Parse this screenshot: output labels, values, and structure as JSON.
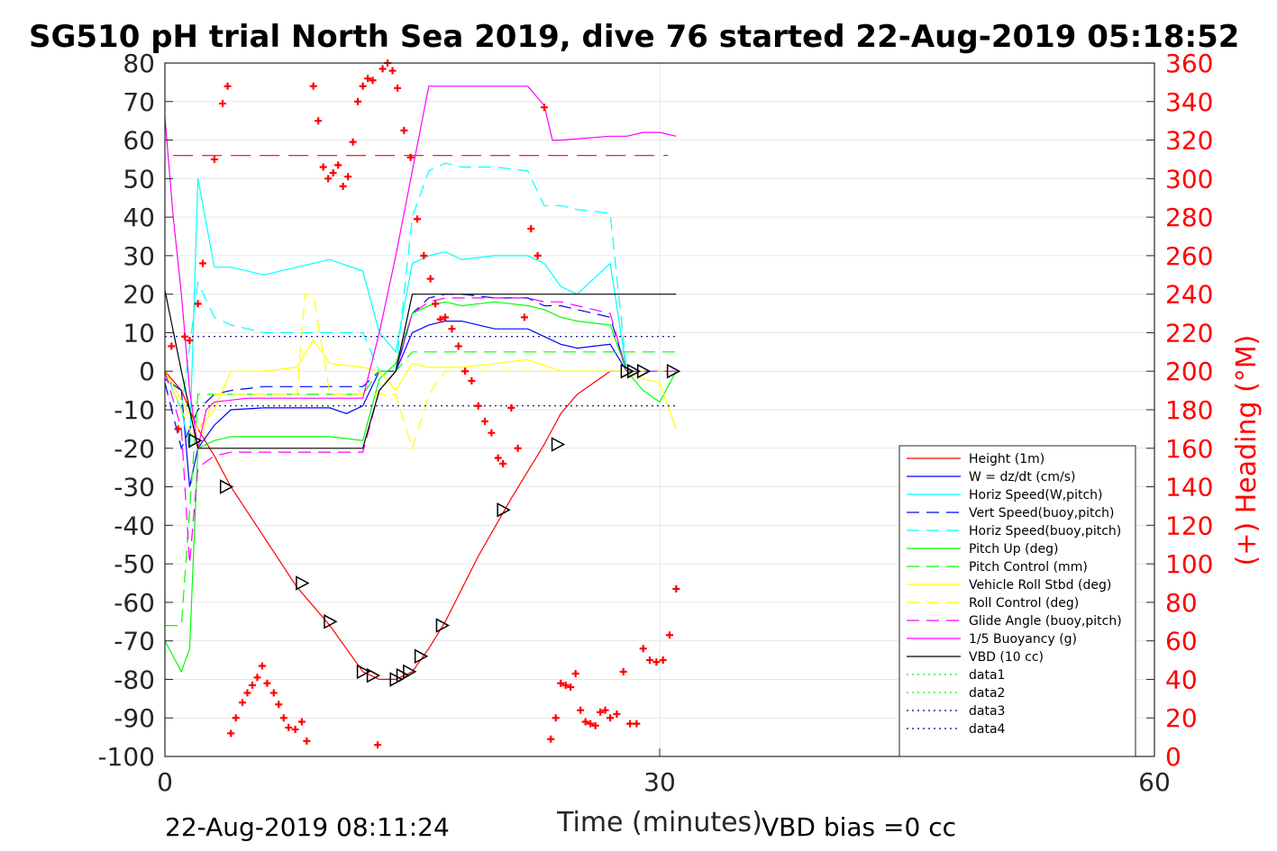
{
  "chart_data": {
    "type": "line",
    "title": "SG510 pH trial North Sea 2019, dive 76 started 22-Aug-2019 05:18:52",
    "xlabel": "Time (minutes)",
    "ylabel_right": "(+) Heading (°M)",
    "xlim": [
      0,
      60
    ],
    "ylim": [
      -100,
      80
    ],
    "ylim_right": [
      0,
      360
    ],
    "x_ticks": [
      "0",
      "30",
      "60"
    ],
    "y_ticks": [
      "80",
      "70",
      "60",
      "50",
      "40",
      "30",
      "20",
      "10",
      "0",
      "-10",
      "-20",
      "-30",
      "-40",
      "-50",
      "-60",
      "-70",
      "-80",
      "-90",
      "-100"
    ],
    "y_ticks_right": [
      "360",
      "340",
      "320",
      "300",
      "280",
      "260",
      "240",
      "220",
      "200",
      "180",
      "160",
      "140",
      "120",
      "100",
      "80",
      "60",
      "40",
      "20",
      "0"
    ],
    "grid": true,
    "legend_position": "bottom-right",
    "footer_left": "22-Aug-2019 08:11:24",
    "footer_right": "VBD bias =0 cc",
    "series": [
      {
        "name": "Height (1m)",
        "color": "#ff0000",
        "style": "solid",
        "x": [
          0,
          1,
          2,
          3,
          4,
          6,
          8,
          10,
          12,
          13,
          14,
          15,
          16,
          17,
          19,
          21,
          23,
          24,
          25,
          26,
          27,
          28,
          29,
          30,
          31
        ],
        "y": [
          0,
          -5,
          -15,
          -22,
          -30,
          -43,
          -56,
          -66,
          -78,
          -80,
          -80,
          -78,
          -72,
          -65,
          -48,
          -33,
          -19,
          -11,
          -6,
          -3,
          0,
          0,
          0,
          0,
          0
        ]
      },
      {
        "name": "W = dz/dt (cm/s)",
        "color": "#0000ff",
        "style": "solid",
        "x": [
          0,
          1,
          1.5,
          2,
          3,
          4,
          6,
          8,
          10,
          11,
          12,
          13,
          14,
          15,
          16,
          17,
          18,
          20,
          22,
          23,
          24,
          25,
          27,
          28,
          29,
          30,
          31
        ],
        "y": [
          -2,
          -5,
          -30,
          -20,
          -14,
          -10,
          -9.5,
          -9.5,
          -9.5,
          -11,
          -9,
          0,
          0,
          10,
          12,
          13,
          13,
          11,
          11,
          9,
          7,
          6,
          7,
          0,
          0,
          0,
          0
        ]
      },
      {
        "name": "Horiz Speed(W,pitch)",
        "color": "#00ffff",
        "style": "solid",
        "x": [
          0,
          1,
          1.5,
          2,
          3,
          4,
          6,
          8,
          10,
          12,
          13,
          14,
          15,
          16,
          17,
          18,
          20,
          22,
          23,
          24,
          25,
          27,
          28,
          29,
          30,
          31
        ],
        "y": [
          0,
          -10,
          -20,
          50,
          27,
          27,
          25,
          27,
          29,
          26,
          10,
          5,
          28,
          30,
          31,
          29,
          30,
          30,
          28,
          22,
          20,
          28,
          0,
          0,
          0,
          0
        ]
      },
      {
        "name": "Vert Speed(buoy,pitch)",
        "color": "#0000ff",
        "style": "dashed",
        "x": [
          0,
          1,
          2,
          3,
          4,
          6,
          8,
          10,
          12,
          13,
          14,
          15,
          16,
          17,
          18,
          20,
          22,
          23,
          24,
          25,
          27,
          28,
          29,
          30,
          31
        ],
        "y": [
          -3,
          -20,
          -10,
          -6,
          -5,
          -4,
          -4,
          -4,
          -4,
          0,
          0,
          15,
          19,
          20,
          20,
          19,
          19,
          17,
          17,
          16,
          14,
          0,
          0,
          0,
          0
        ]
      },
      {
        "name": "Horiz Speed(buoy,pitch)",
        "color": "#00ffff",
        "style": "dashed",
        "x": [
          0,
          1,
          2,
          3,
          4,
          6,
          8,
          10,
          12,
          13,
          14,
          15,
          16,
          17,
          18,
          20,
          22,
          23,
          24,
          25,
          27,
          28,
          29,
          30,
          31
        ],
        "y": [
          0,
          -10,
          23,
          14,
          12,
          10,
          10,
          10,
          10,
          0,
          0,
          40,
          52,
          54,
          53,
          53,
          52,
          43,
          43,
          42,
          41,
          0,
          0,
          0,
          0
        ]
      },
      {
        "name": "Pitch Up (deg)",
        "color": "#00ff00",
        "style": "solid",
        "x": [
          0,
          1,
          1.5,
          2,
          3,
          4,
          6,
          8,
          10,
          12,
          13,
          14,
          15,
          16,
          17,
          18,
          20,
          22,
          23,
          24,
          25,
          27,
          28,
          29,
          30,
          31
        ],
        "y": [
          -70,
          -78,
          -72,
          -20,
          -18,
          -17,
          -17,
          -17,
          -17,
          -18,
          -2,
          2,
          15,
          17,
          18,
          17,
          18,
          17,
          16,
          14,
          13,
          12,
          0,
          -5,
          -8,
          0
        ]
      },
      {
        "name": "Pitch Control (mm)",
        "color": "#00ff00",
        "style": "dashed",
        "x": [
          0,
          1,
          2,
          3,
          12,
          13,
          14,
          15,
          31
        ],
        "y": [
          -66,
          -66,
          -6,
          -6,
          -6,
          0,
          0,
          5,
          5
        ]
      },
      {
        "name": "Vehicle Roll Stbd (deg)",
        "color": "#ffff00",
        "style": "solid",
        "x": [
          0,
          2,
          3,
          4,
          6,
          8,
          9,
          10,
          12,
          13,
          14,
          15,
          16,
          18,
          20,
          22,
          24,
          26,
          28,
          29,
          30,
          31
        ],
        "y": [
          0,
          -15,
          -10,
          0,
          0,
          1,
          8,
          2,
          1,
          0,
          -5,
          2,
          1,
          1,
          2,
          3,
          0,
          0,
          0,
          -2,
          -3,
          -15
        ]
      },
      {
        "name": "Roll Control (deg)",
        "color": "#ffff00",
        "style": "dashed",
        "x": [
          0,
          2,
          3,
          8,
          8.5,
          9,
          10,
          14,
          15,
          16,
          17,
          31
        ],
        "y": [
          0,
          -20,
          -6,
          -6,
          20,
          20,
          -6,
          -6,
          -20,
          -6,
          0,
          0
        ]
      },
      {
        "name": "Glide Angle (buoy,pitch)",
        "color": "#ff00ff",
        "style": "dashed",
        "x": [
          0,
          1,
          1.5,
          2,
          3,
          4,
          6,
          8,
          10,
          12,
          13,
          14,
          15,
          16,
          17,
          18,
          20,
          22,
          23,
          24,
          25,
          27,
          28,
          29,
          30,
          31
        ],
        "y": [
          0,
          -15,
          -50,
          -25,
          -22,
          -21,
          -21,
          -21,
          -21,
          -21,
          -5,
          0,
          15,
          18,
          19,
          19,
          19,
          19,
          18,
          18,
          17,
          15,
          0,
          0,
          0,
          0
        ]
      },
      {
        "name": "1/5 Buoyancy (g)",
        "color": "#ff00ff",
        "style": "solid",
        "x": [
          0,
          0.5,
          1,
          1.5,
          2,
          2.5,
          3,
          5,
          8,
          10,
          12,
          13,
          14,
          15,
          16,
          18,
          20,
          22,
          23,
          23.5,
          24,
          27,
          28,
          29,
          30,
          31
        ],
        "y": [
          66,
          40,
          20,
          -5,
          -20,
          -10,
          -8,
          -7,
          -7,
          -7,
          -7,
          10,
          30,
          52,
          74,
          74,
          74,
          74,
          69,
          60,
          60,
          61,
          61,
          62,
          62,
          61
        ]
      },
      {
        "name": "VBD (10 cc)",
        "color": "#000000",
        "style": "solid",
        "x": [
          0,
          1,
          2,
          12,
          13,
          14,
          15,
          30,
          31
        ],
        "y": [
          21,
          0,
          -20,
          -20,
          -5,
          0,
          20,
          20,
          20
        ]
      },
      {
        "name": "data1",
        "color": "#00ff00",
        "style": "dotted",
        "x": [],
        "y": []
      },
      {
        "name": "data2",
        "color": "#00ff00",
        "style": "dotted",
        "x": [],
        "y": []
      },
      {
        "name": "data3",
        "color": "#000080",
        "style": "dotted",
        "x": [
          0,
          31
        ],
        "y": [
          9,
          9
        ]
      },
      {
        "name": "data4",
        "color": "#000080",
        "style": "dotted",
        "x": [
          0,
          31
        ],
        "y": [
          -9,
          -9
        ]
      }
    ],
    "reference_line": {
      "color": "#ff0000",
      "style": "dashed",
      "x": [
        0.5,
        30.5
      ],
      "y_right": 312
    },
    "heading_points": {
      "color": "#ff0000",
      "x": [
        0.4,
        0.8,
        1.2,
        1.5,
        2.0,
        2.3,
        3.0,
        3.5,
        3.8,
        4.0,
        4.3,
        4.7,
        5.0,
        5.3,
        5.6,
        5.9,
        6.2,
        6.6,
        6.9,
        7.2,
        7.5,
        7.9,
        8.3,
        8.6,
        9.0,
        9.3,
        9.6,
        9.9,
        10.2,
        10.5,
        10.8,
        11.1,
        11.4,
        11.7,
        12.0,
        12.3,
        12.6,
        12.9,
        13.2,
        13.5,
        13.8,
        14.1,
        14.5,
        14.9,
        15.3,
        15.7,
        16.1,
        16.4,
        16.7,
        17.0,
        17.4,
        17.8,
        18.2,
        18.6,
        19.0,
        19.4,
        19.8,
        20.2,
        20.5,
        21.0,
        21.4,
        21.8,
        22.2,
        22.6,
        23.0,
        23.4,
        23.7,
        24.0,
        24.3,
        24.6,
        24.9,
        25.2,
        25.5,
        25.8,
        26.1,
        26.4,
        26.7,
        27.0,
        27.4,
        27.8,
        28.2,
        28.6,
        29.0,
        29.4,
        29.8,
        30.2,
        30.6,
        31.0
      ],
      "y": [
        213,
        170,
        218,
        216,
        235,
        256,
        310,
        339,
        348,
        12,
        20,
        28,
        33,
        37,
        41,
        47,
        38,
        33,
        27,
        20,
        15,
        14,
        18,
        8,
        348,
        330,
        306,
        300,
        303,
        307,
        296,
        301,
        319,
        340,
        348,
        352,
        351,
        6,
        357,
        360,
        356,
        347,
        325,
        311,
        279,
        260,
        248,
        235,
        227,
        228,
        222,
        213,
        200,
        195,
        182,
        174,
        168,
        155,
        152,
        181,
        160,
        228,
        274,
        260,
        337,
        9,
        20,
        38,
        37,
        36,
        43,
        24,
        18,
        17,
        16,
        23,
        24,
        20,
        22,
        44,
        17,
        17,
        56,
        50,
        49,
        50,
        63,
        87
      ]
    },
    "markers": {
      "x": [
        1.8,
        3.7,
        8.3,
        10.0,
        12.0,
        12.6,
        14.0,
        14.4,
        14.8,
        15.5,
        16.8,
        20.5,
        23.8,
        28.0,
        28.4,
        29.0,
        30.8
      ],
      "y": [
        -18,
        -30,
        -55,
        -65,
        -78,
        -79,
        -80,
        -79,
        -78,
        -74,
        -66,
        -36,
        -19,
        0,
        0,
        0,
        0
      ]
    }
  }
}
